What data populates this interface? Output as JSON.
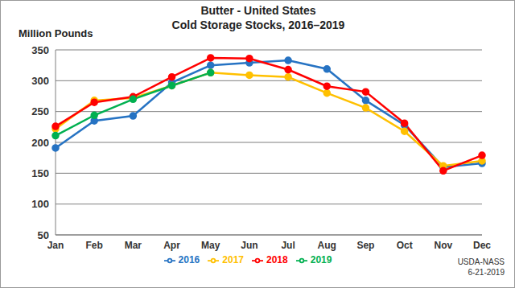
{
  "chart_data": {
    "type": "line",
    "title": "Butter - United States",
    "subtitle": "Cold Storage Stocks, 2016–2019",
    "y_label": "Million Pounds",
    "annotations": [
      "USDA-NASS",
      "6-21-2019"
    ],
    "categories": [
      "Jan",
      "Feb",
      "Mar",
      "Apr",
      "May",
      "Jun",
      "Jul",
      "Aug",
      "Sep",
      "Oct",
      "Nov",
      "Dec"
    ],
    "series": [
      {
        "name": "2016",
        "color": "#2673C3",
        "values": [
          191,
          235,
          243,
          297,
          325,
          329,
          333,
          319,
          268,
          228,
          160,
          166
        ]
      },
      {
        "name": "2017",
        "color": "#FFC000",
        "values": [
          222,
          268,
          272,
          292,
          313,
          309,
          306,
          280,
          256,
          218,
          162,
          170
        ]
      },
      {
        "name": "2018",
        "color": "#FF0000",
        "values": [
          226,
          265,
          274,
          306,
          337,
          336,
          318,
          291,
          282,
          231,
          154,
          179
        ]
      },
      {
        "name": "2019",
        "color": "#00B050",
        "values": [
          211,
          244,
          270,
          292,
          313,
          null,
          null,
          null,
          null,
          null,
          null,
          null
        ]
      }
    ],
    "ylim": [
      50,
      350
    ],
    "yticks": [
      50,
      100,
      150,
      200,
      250,
      300,
      350
    ],
    "grid": true,
    "legend": "bottom",
    "marker": "circle",
    "line_style": "solid"
  }
}
